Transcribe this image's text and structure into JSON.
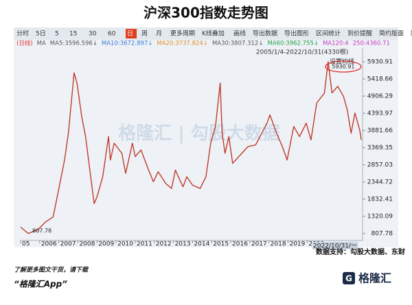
{
  "chart_data": {
    "type": "line",
    "title": "沪深300指数走势图",
    "toolbar": [
      "分时",
      "5日",
      "5",
      "15",
      "30",
      "60",
      "日",
      "周",
      "月",
      "更多周期",
      "K线叠加",
      "画线",
      "导出数据",
      "导出图形",
      "区间统计",
      "到价提醒",
      "简约版面",
      "隐藏"
    ],
    "ma_legend": [
      {
        "text": "(日线)",
        "color": "#d33"
      },
      {
        "text": "MA",
        "color": "#555"
      },
      {
        "text": "MA5:3596.596↓",
        "color": "#555"
      },
      {
        "text": "MA10:3672.897↓",
        "color": "#3a7ad9"
      },
      {
        "text": "MA20:3737.824↓",
        "color": "#e0902a"
      },
      {
        "text": "MA30:3807.312↓",
        "color": "#555"
      },
      {
        "text": "MA60:3962.755↓",
        "color": "#2aa24a"
      },
      {
        "text": "MA120:4",
        "color": "#c43bc4"
      },
      {
        "text": "250:4360.71",
        "color": "#c43bc4"
      }
    ],
    "range_label": "2005/1/4-2022/10/31(4330根)",
    "ma_setting": "设置均线",
    "watermark": "格隆汇 | 勾股大数据",
    "cursor_label": "2022/10/31/一",
    "max_label": "5930.91",
    "min_label": "807.78",
    "x": [
      2005.0,
      2005.4,
      2005.9,
      2006.3,
      2006.7,
      2006.95,
      2007.3,
      2007.5,
      2007.8,
      2007.95,
      2008.2,
      2008.4,
      2008.6,
      2008.85,
      2009.0,
      2009.3,
      2009.6,
      2009.7,
      2009.9,
      2010.3,
      2010.5,
      2010.85,
      2011.0,
      2011.3,
      2011.7,
      2011.95,
      2012.2,
      2012.6,
      2012.9,
      2013.1,
      2013.5,
      2013.7,
      2014.0,
      2014.4,
      2014.7,
      2014.95,
      2015.2,
      2015.45,
      2015.55,
      2015.7,
      2015.9,
      2016.1,
      2016.5,
      2016.9,
      2017.3,
      2017.9,
      2018.05,
      2018.4,
      2018.7,
      2018.95,
      2019.3,
      2019.6,
      2019.95,
      2020.2,
      2020.5,
      2020.9,
      2021.1,
      2021.3,
      2021.6,
      2021.9,
      2022.1,
      2022.3,
      2022.5,
      2022.75,
      2022.83
    ],
    "values": [
      1000,
      807.78,
      920,
      1150,
      1300,
      2000,
      3000,
      3800,
      5600,
      5300,
      4300,
      3700,
      2800,
      1700,
      1900,
      2500,
      3700,
      3000,
      3500,
      3200,
      2600,
      3500,
      3100,
      3300,
      2700,
      2350,
      2650,
      2300,
      2150,
      2700,
      2200,
      2500,
      2250,
      2150,
      2500,
      3500,
      4000,
      5300,
      3800,
      3200,
      3700,
      2900,
      3150,
      3400,
      3450,
      4100,
      4350,
      3800,
      3400,
      3000,
      4000,
      3700,
      4100,
      3600,
      4700,
      5000,
      5930.91,
      5000,
      5200,
      4900,
      4500,
      3800,
      4400,
      3900,
      3600
    ],
    "color": "#c0392b",
    "xlim": [
      2005.0,
      2022.9
    ],
    "xticks": [
      {
        "value": 2005,
        "label": "05"
      },
      2006,
      2007,
      2008,
      2009,
      2010,
      2011,
      2012,
      2013,
      2014,
      2015,
      2016,
      2017,
      2018,
      2019,
      2020
    ],
    "ylim": [
      600,
      6340
    ],
    "yticks": [
      807.78,
      1320.09,
      1832.41,
      2344.72,
      2857.03,
      3369.35,
      3881.66,
      4393.97,
      4906.29,
      5418.66,
      5930.91
    ],
    "grid": false,
    "source": "数据支持：勾股大数据、东财",
    "footer_line1": "了解更多图文干货，请下载",
    "footer_line2": "“格隆汇App”",
    "logo": "格隆汇"
  }
}
